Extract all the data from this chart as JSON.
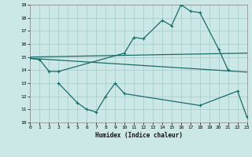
{
  "xlabel": "Humidex (Indice chaleur)",
  "background_color": "#cce8e6",
  "grid_color": "#aad0cc",
  "line_color": "#1a6b68",
  "xlim": [
    0,
    23
  ],
  "ylim": [
    10,
    19
  ],
  "xticks": [
    0,
    1,
    2,
    3,
    4,
    5,
    6,
    7,
    8,
    9,
    10,
    11,
    12,
    13,
    14,
    15,
    16,
    17,
    18,
    19,
    20,
    21,
    22,
    23
  ],
  "yticks": [
    10,
    11,
    12,
    13,
    14,
    15,
    16,
    17,
    18,
    19
  ],
  "line1_x": [
    0,
    1,
    2,
    3,
    10,
    11,
    12,
    14,
    15,
    16,
    17,
    18,
    20,
    21
  ],
  "line1_y": [
    14.9,
    14.8,
    13.9,
    13.9,
    15.3,
    16.5,
    16.4,
    17.8,
    17.4,
    19.0,
    18.5,
    18.4,
    15.6,
    14.0
  ],
  "line2_x": [
    0,
    23
  ],
  "line2_y": [
    15.0,
    15.3
  ],
  "line3_x": [
    0,
    23
  ],
  "line3_y": [
    14.9,
    13.85
  ],
  "line4_x": [
    3,
    5,
    6,
    7,
    8,
    9,
    10,
    18,
    22,
    23
  ],
  "line4_y": [
    13.0,
    11.5,
    11.0,
    10.8,
    12.0,
    13.0,
    12.2,
    11.3,
    12.4,
    10.4
  ]
}
